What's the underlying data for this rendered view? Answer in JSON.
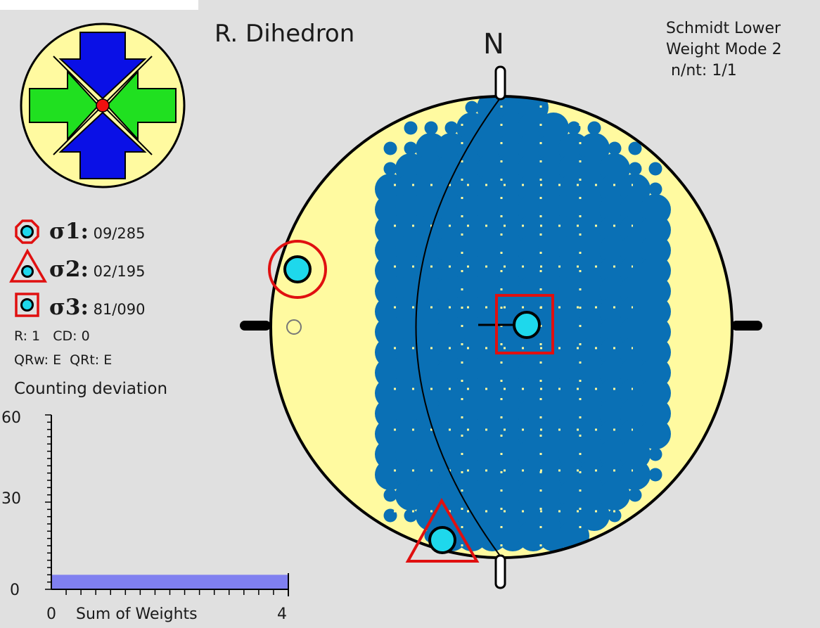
{
  "title": "R. Dihedron",
  "north_label": "N",
  "projection": {
    "line1": "Schmidt Lower",
    "line2": "Weight Mode 2",
    "line3": "n/nt: 1/1"
  },
  "sigma": [
    {
      "symbol": "σ1",
      "value": "09/285",
      "marker": "circle"
    },
    {
      "symbol": "σ2",
      "value": "02/195",
      "marker": "triangle"
    },
    {
      "symbol": "σ3",
      "value": "81/090",
      "marker": "square"
    }
  ],
  "stats": {
    "line1": "R: 1   CD: 0",
    "line2": "QRw: E  QRt: E"
  },
  "counting": {
    "title": "Counting deviation",
    "y_ticks": [
      "60",
      "30",
      "0"
    ],
    "x_min": "0",
    "x_max": "4",
    "xlabel": "Sum of Weights",
    "bar_value": 5,
    "y_max": 60
  },
  "colors": {
    "background": "#e0e0e0",
    "stereonet_fill": "#fffaa0",
    "dots": "#0a70b5",
    "sigma_marker": "#1ed8ec",
    "highlight": "#e01010",
    "arrow_vertical": "#0a10e6",
    "arrow_horizontal": "#20e020",
    "bar": "#8080f0"
  },
  "icons": [
    "beach-ball-icon",
    "compression-arrows-icon"
  ]
}
